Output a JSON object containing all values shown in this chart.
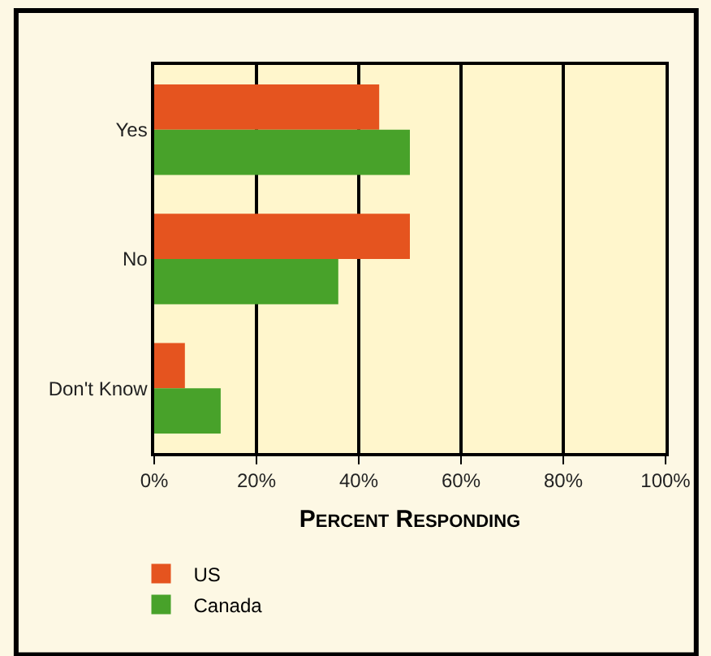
{
  "chart_data": {
    "type": "bar",
    "orientation": "horizontal",
    "xlabel": "Percent Responding",
    "categories": [
      "Yes",
      "No",
      "Don't Know"
    ],
    "series": [
      {
        "name": "US",
        "color": "#e5541f",
        "values": [
          44,
          50,
          6
        ]
      },
      {
        "name": "Canada",
        "color": "#48a22a",
        "values": [
          50,
          36,
          13
        ]
      }
    ],
    "xlim": [
      0,
      100
    ],
    "xticks": [
      {
        "value": 0,
        "label": "0%"
      },
      {
        "value": 20,
        "label": "20%"
      },
      {
        "value": 40,
        "label": "40%"
      },
      {
        "value": 60,
        "label": "60%"
      },
      {
        "value": 80,
        "label": "80%"
      },
      {
        "value": 100,
        "label": "100%"
      }
    ],
    "grid": "x",
    "legend": "bottom left"
  }
}
